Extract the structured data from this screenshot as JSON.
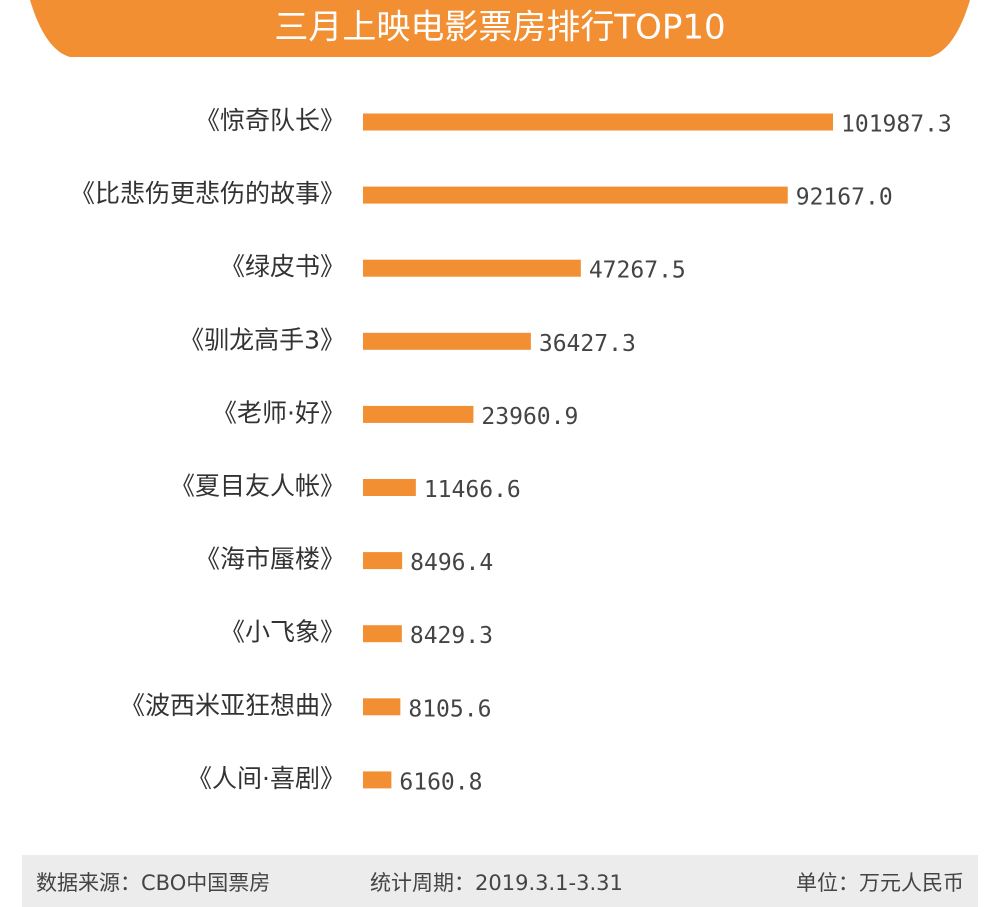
{
  "chart_data": {
    "type": "bar",
    "orientation": "horizontal",
    "title": "三月上映电影票房排行TOP10",
    "categories": [
      "《惊奇队长》",
      "《比悲伤更悲伤的故事》",
      "《绿皮书》",
      "《驯龙高手3》",
      "《老师·好》",
      "《夏目友人帐》",
      "《海市蜃楼》",
      "《小飞象》",
      "《波西米亚狂想曲》",
      "《人间·喜剧》"
    ],
    "values": [
      101987.3,
      92167.0,
      47267.5,
      36427.3,
      23960.9,
      11466.6,
      8496.4,
      8429.3,
      8105.6,
      6160.8
    ],
    "value_labels": [
      "101987.3",
      "92167.0",
      "47267.5",
      "36427.3",
      "23960.9",
      "11466.6",
      "8496.4",
      "8429.3",
      "8105.6",
      "6160.8"
    ],
    "color": "#f28f33",
    "footer": {
      "source": "数据来源：CBO中国票房",
      "period": "统计周期：2019.3.1-3.31",
      "unit": "单位：万元人民币"
    }
  }
}
